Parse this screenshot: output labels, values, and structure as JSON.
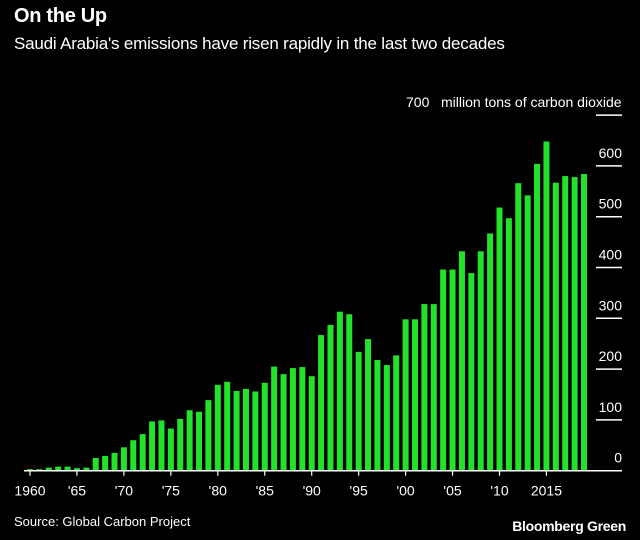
{
  "title": "On the Up",
  "subtitle": "Saudi Arabia's emissions have risen rapidly in the last two decades",
  "source": "Source: Global Carbon Project",
  "brand": "Bloomberg Green",
  "chart_data": {
    "type": "bar",
    "title": "On the Up",
    "subtitle": "Saudi Arabia's emissions have risen rapidly in the last two decades",
    "ylabel": "million tons of carbon dioxide",
    "ylim": [
      0,
      700
    ],
    "yticks": [
      0,
      100,
      200,
      300,
      400,
      500,
      600,
      700
    ],
    "ytick_labels": [
      "0",
      "100",
      "200",
      "300",
      "400",
      "500",
      "600",
      "700"
    ],
    "xtick_years": [
      1960,
      1965,
      1970,
      1975,
      1980,
      1985,
      1990,
      1995,
      2000,
      2005,
      2010,
      2015
    ],
    "xtick_labels": [
      "1960",
      "'65",
      "'70",
      "'75",
      "'80",
      "'85",
      "'90",
      "'95",
      "'00",
      "'05",
      "'10",
      "2015"
    ],
    "bar_color": "#22e32a",
    "grid": true,
    "categories": [
      1960,
      1961,
      1962,
      1963,
      1964,
      1965,
      1966,
      1967,
      1968,
      1969,
      1970,
      1971,
      1972,
      1973,
      1974,
      1975,
      1976,
      1977,
      1978,
      1979,
      1980,
      1981,
      1982,
      1983,
      1984,
      1985,
      1986,
      1987,
      1988,
      1989,
      1990,
      1991,
      1992,
      1993,
      1994,
      1995,
      1996,
      1997,
      1998,
      1999,
      2000,
      2001,
      2002,
      2003,
      2004,
      2005,
      2006,
      2007,
      2008,
      2009,
      2010,
      2011,
      2012,
      2013,
      2014,
      2015,
      2016,
      2017,
      2018,
      2019
    ],
    "values": [
      3,
      3,
      6,
      8,
      8,
      5,
      6,
      25,
      29,
      35,
      46,
      60,
      72,
      97,
      99,
      83,
      102,
      119,
      116,
      139,
      169,
      175,
      157,
      161,
      156,
      173,
      205,
      190,
      202,
      204,
      186,
      267,
      287,
      313,
      308,
      234,
      259,
      218,
      208,
      227,
      298,
      298,
      328,
      328,
      396,
      396,
      432,
      389,
      432,
      467,
      518,
      497,
      566,
      542,
      604,
      648,
      567,
      580,
      578,
      584
    ]
  }
}
